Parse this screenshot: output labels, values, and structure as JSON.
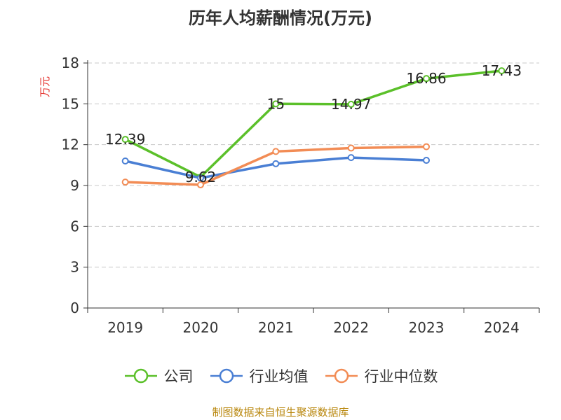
{
  "chart_data": {
    "type": "line",
    "title": "历年人均薪酬情况(万元)",
    "ylabel": "万元",
    "categories": [
      "2019",
      "2020",
      "2021",
      "2022",
      "2023",
      "2024"
    ],
    "ylim": [
      0,
      18
    ],
    "yticks": [
      0,
      3,
      6,
      9,
      12,
      15,
      18
    ],
    "grid": true,
    "legend_position": "bottom",
    "series": [
      {
        "name": "公司",
        "color": "#5bc02a",
        "values": [
          12.39,
          9.62,
          15,
          14.97,
          16.86,
          17.43
        ],
        "labels": [
          "12.39",
          "9.62",
          "15",
          "14.97",
          "16.86",
          "17.43"
        ]
      },
      {
        "name": "行业均值",
        "color": "#4a7fd4",
        "values": [
          10.8,
          9.55,
          10.6,
          11.05,
          10.85,
          null
        ]
      },
      {
        "name": "行业中位数",
        "color": "#f28c55",
        "values": [
          9.25,
          9.05,
          11.5,
          11.75,
          11.85,
          null
        ]
      }
    ],
    "source": "制图数据来自恒生聚源数据库"
  }
}
